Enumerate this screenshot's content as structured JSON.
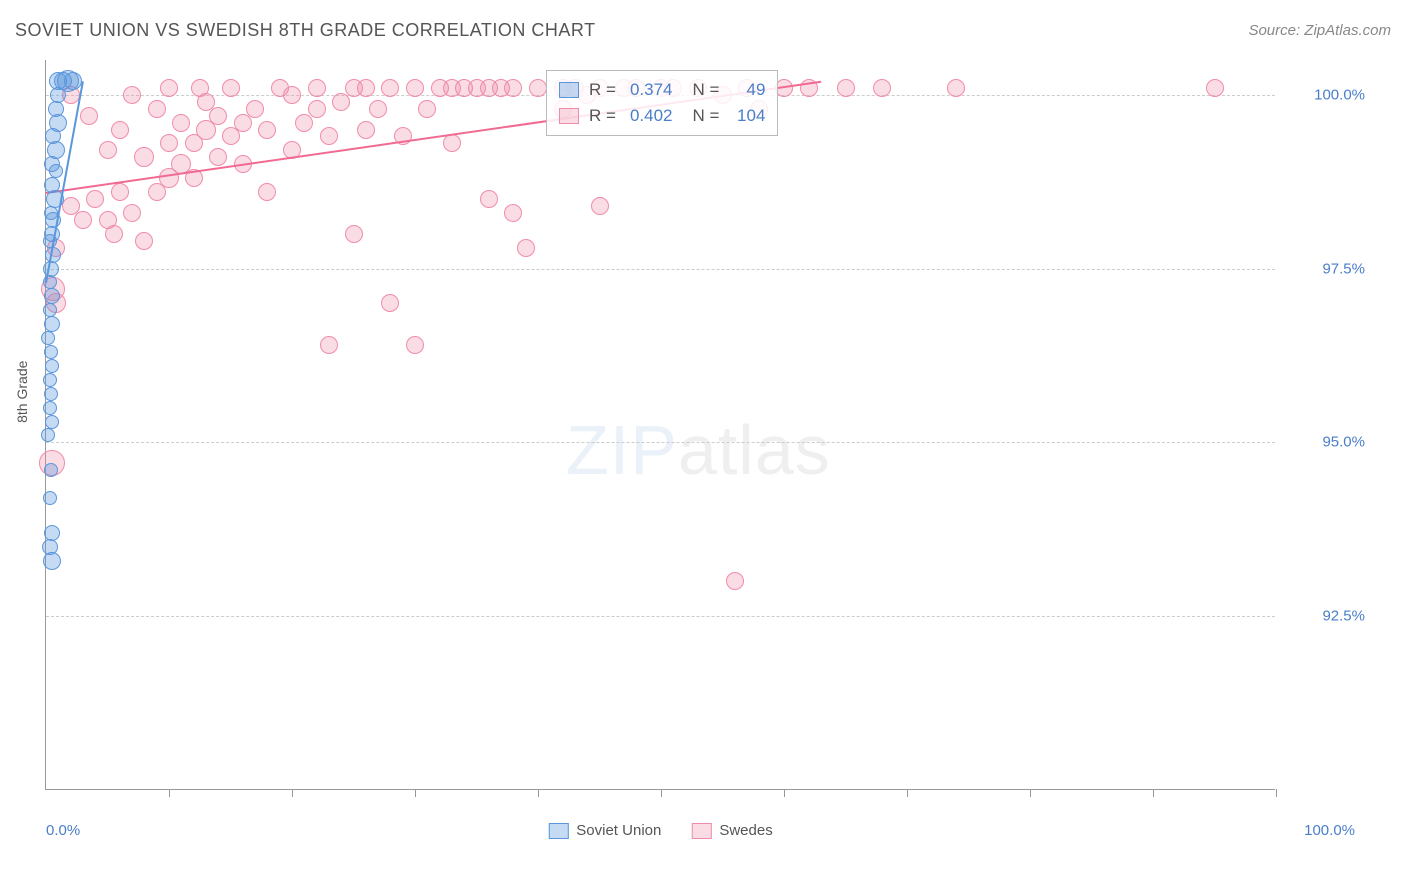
{
  "header": {
    "title": "SOVIET UNION VS SWEDISH 8TH GRADE CORRELATION CHART",
    "source": "Source: ZipAtlas.com"
  },
  "watermark": {
    "bold": "ZIP",
    "light": "atlas"
  },
  "chart": {
    "type": "scatter",
    "ylabel": "8th Grade",
    "xlim": [
      0,
      100
    ],
    "ylim": [
      90,
      100.5
    ],
    "xticks_pct": [
      10,
      20,
      30,
      40,
      50,
      60,
      70,
      80,
      90,
      100
    ],
    "yticks": [
      {
        "value": 100.0,
        "label": "100.0%"
      },
      {
        "value": 97.5,
        "label": "97.5%"
      },
      {
        "value": 95.0,
        "label": "95.0%"
      },
      {
        "value": 92.5,
        "label": "92.5%"
      }
    ],
    "xaxis_label_left": "0.0%",
    "xaxis_label_right": "100.0%",
    "grid_color": "#cccccc",
    "background_color": "#ffffff",
    "label_fontsize": 14,
    "tick_fontsize": 15,
    "tick_color": "#4a7ec9",
    "series": {
      "soviet": {
        "label": "Soviet Union",
        "fill": "rgba(90,150,220,0.35)",
        "stroke": "#5a96dc",
        "R": "0.374",
        "N": "49",
        "trend": {
          "x1": 0,
          "y1": 97.3,
          "x2": 3,
          "y2": 100.2,
          "color": "#5a96dc"
        },
        "points": [
          {
            "x": 1.0,
            "y": 100.2,
            "r": 9
          },
          {
            "x": 1.4,
            "y": 100.2,
            "r": 9
          },
          {
            "x": 1.8,
            "y": 100.2,
            "r": 11
          },
          {
            "x": 2.2,
            "y": 100.2,
            "r": 9
          },
          {
            "x": 1.0,
            "y": 100.0,
            "r": 8
          },
          {
            "x": 0.8,
            "y": 99.8,
            "r": 8
          },
          {
            "x": 1.0,
            "y": 99.6,
            "r": 9
          },
          {
            "x": 0.6,
            "y": 99.4,
            "r": 8
          },
          {
            "x": 0.8,
            "y": 99.2,
            "r": 9
          },
          {
            "x": 0.5,
            "y": 99.0,
            "r": 8
          },
          {
            "x": 0.8,
            "y": 98.9,
            "r": 7
          },
          {
            "x": 0.5,
            "y": 98.7,
            "r": 8
          },
          {
            "x": 0.7,
            "y": 98.5,
            "r": 9
          },
          {
            "x": 0.4,
            "y": 98.3,
            "r": 7
          },
          {
            "x": 0.6,
            "y": 98.2,
            "r": 8
          },
          {
            "x": 0.5,
            "y": 98.0,
            "r": 8
          },
          {
            "x": 0.3,
            "y": 97.9,
            "r": 7
          },
          {
            "x": 0.6,
            "y": 97.7,
            "r": 8
          },
          {
            "x": 0.4,
            "y": 97.5,
            "r": 8
          },
          {
            "x": 0.3,
            "y": 97.3,
            "r": 7
          },
          {
            "x": 0.5,
            "y": 97.1,
            "r": 8
          },
          {
            "x": 0.3,
            "y": 96.9,
            "r": 7
          },
          {
            "x": 0.5,
            "y": 96.7,
            "r": 8
          },
          {
            "x": 0.2,
            "y": 96.5,
            "r": 7
          },
          {
            "x": 0.4,
            "y": 96.3,
            "r": 7
          },
          {
            "x": 0.5,
            "y": 96.1,
            "r": 7
          },
          {
            "x": 0.3,
            "y": 95.9,
            "r": 7
          },
          {
            "x": 0.4,
            "y": 95.7,
            "r": 7
          },
          {
            "x": 0.3,
            "y": 95.5,
            "r": 7
          },
          {
            "x": 0.5,
            "y": 95.3,
            "r": 7
          },
          {
            "x": 0.2,
            "y": 95.1,
            "r": 7
          },
          {
            "x": 0.4,
            "y": 94.6,
            "r": 7
          },
          {
            "x": 0.3,
            "y": 94.2,
            "r": 7
          },
          {
            "x": 0.5,
            "y": 93.7,
            "r": 8
          },
          {
            "x": 0.3,
            "y": 93.5,
            "r": 8
          },
          {
            "x": 0.5,
            "y": 93.3,
            "r": 9
          }
        ]
      },
      "swedes": {
        "label": "Swedes",
        "fill": "rgba(240,140,170,0.3)",
        "stroke": "#f08caa",
        "R": "0.402",
        "N": "104",
        "trend": {
          "x1": 0,
          "y1": 98.6,
          "x2": 63,
          "y2": 100.2,
          "color": "#f06a92"
        },
        "points": [
          {
            "x": 0.8,
            "y": 97.8,
            "r": 9
          },
          {
            "x": 0.6,
            "y": 97.2,
            "r": 12
          },
          {
            "x": 0.8,
            "y": 97.0,
            "r": 10
          },
          {
            "x": 0.5,
            "y": 94.7,
            "r": 13
          },
          {
            "x": 2,
            "y": 98.4,
            "r": 9
          },
          {
            "x": 2,
            "y": 100.0,
            "r": 9
          },
          {
            "x": 3,
            "y": 98.2,
            "r": 9
          },
          {
            "x": 3.5,
            "y": 99.7,
            "r": 9
          },
          {
            "x": 4,
            "y": 98.5,
            "r": 9
          },
          {
            "x": 5,
            "y": 98.2,
            "r": 9
          },
          {
            "x": 5,
            "y": 99.2,
            "r": 9
          },
          {
            "x": 5.5,
            "y": 98.0,
            "r": 9
          },
          {
            "x": 6,
            "y": 98.6,
            "r": 9
          },
          {
            "x": 6,
            "y": 99.5,
            "r": 9
          },
          {
            "x": 7,
            "y": 98.3,
            "r": 9
          },
          {
            "x": 7,
            "y": 100.0,
            "r": 9
          },
          {
            "x": 8,
            "y": 99.1,
            "r": 10
          },
          {
            "x": 8,
            "y": 97.9,
            "r": 9
          },
          {
            "x": 9,
            "y": 98.6,
            "r": 9
          },
          {
            "x": 9,
            "y": 99.8,
            "r": 9
          },
          {
            "x": 10,
            "y": 98.8,
            "r": 10
          },
          {
            "x": 10,
            "y": 99.3,
            "r": 9
          },
          {
            "x": 10,
            "y": 100.1,
            "r": 9
          },
          {
            "x": 11,
            "y": 99.0,
            "r": 10
          },
          {
            "x": 11,
            "y": 99.6,
            "r": 9
          },
          {
            "x": 12,
            "y": 98.8,
            "r": 9
          },
          {
            "x": 12,
            "y": 99.3,
            "r": 9
          },
          {
            "x": 12.5,
            "y": 100.1,
            "r": 9
          },
          {
            "x": 13,
            "y": 99.5,
            "r": 10
          },
          {
            "x": 13,
            "y": 99.9,
            "r": 9
          },
          {
            "x": 14,
            "y": 99.1,
            "r": 9
          },
          {
            "x": 14,
            "y": 99.7,
            "r": 9
          },
          {
            "x": 15,
            "y": 99.4,
            "r": 9
          },
          {
            "x": 15,
            "y": 100.1,
            "r": 9
          },
          {
            "x": 16,
            "y": 99.0,
            "r": 9
          },
          {
            "x": 16,
            "y": 99.6,
            "r": 9
          },
          {
            "x": 17,
            "y": 99.8,
            "r": 9
          },
          {
            "x": 18,
            "y": 98.6,
            "r": 9
          },
          {
            "x": 18,
            "y": 99.5,
            "r": 9
          },
          {
            "x": 19,
            "y": 100.1,
            "r": 9
          },
          {
            "x": 20,
            "y": 99.2,
            "r": 9
          },
          {
            "x": 20,
            "y": 100.0,
            "r": 9
          },
          {
            "x": 21,
            "y": 99.6,
            "r": 9
          },
          {
            "x": 22,
            "y": 99.8,
            "r": 9
          },
          {
            "x": 22,
            "y": 100.1,
            "r": 9
          },
          {
            "x": 23,
            "y": 99.4,
            "r": 9
          },
          {
            "x": 23,
            "y": 96.4,
            "r": 9
          },
          {
            "x": 24,
            "y": 99.9,
            "r": 9
          },
          {
            "x": 25,
            "y": 100.1,
            "r": 9
          },
          {
            "x": 25,
            "y": 98.0,
            "r": 9
          },
          {
            "x": 26,
            "y": 99.5,
            "r": 9
          },
          {
            "x": 26,
            "y": 100.1,
            "r": 9
          },
          {
            "x": 27,
            "y": 99.8,
            "r": 9
          },
          {
            "x": 28,
            "y": 97.0,
            "r": 9
          },
          {
            "x": 28,
            "y": 100.1,
            "r": 9
          },
          {
            "x": 29,
            "y": 99.4,
            "r": 9
          },
          {
            "x": 30,
            "y": 96.4,
            "r": 9
          },
          {
            "x": 30,
            "y": 100.1,
            "r": 9
          },
          {
            "x": 31,
            "y": 99.8,
            "r": 9
          },
          {
            "x": 32,
            "y": 100.1,
            "r": 9
          },
          {
            "x": 33,
            "y": 100.1,
            "r": 9
          },
          {
            "x": 33,
            "y": 99.3,
            "r": 9
          },
          {
            "x": 34,
            "y": 100.1,
            "r": 9
          },
          {
            "x": 35,
            "y": 100.1,
            "r": 9
          },
          {
            "x": 36,
            "y": 98.5,
            "r": 9
          },
          {
            "x": 36,
            "y": 100.1,
            "r": 9
          },
          {
            "x": 37,
            "y": 100.1,
            "r": 9
          },
          {
            "x": 38,
            "y": 98.3,
            "r": 9
          },
          {
            "x": 38,
            "y": 100.1,
            "r": 9
          },
          {
            "x": 39,
            "y": 97.8,
            "r": 9
          },
          {
            "x": 40,
            "y": 100.1,
            "r": 9
          },
          {
            "x": 42,
            "y": 100.1,
            "r": 9
          },
          {
            "x": 42,
            "y": 99.8,
            "r": 9
          },
          {
            "x": 43,
            "y": 100.1,
            "r": 9
          },
          {
            "x": 44,
            "y": 100.0,
            "r": 9
          },
          {
            "x": 45,
            "y": 100.1,
            "r": 9
          },
          {
            "x": 45,
            "y": 98.4,
            "r": 9
          },
          {
            "x": 47,
            "y": 100.1,
            "r": 9
          },
          {
            "x": 48,
            "y": 100.1,
            "r": 9
          },
          {
            "x": 50,
            "y": 100.1,
            "r": 9
          },
          {
            "x": 51,
            "y": 100.1,
            "r": 9
          },
          {
            "x": 53,
            "y": 100.1,
            "r": 9
          },
          {
            "x": 55,
            "y": 100.0,
            "r": 9
          },
          {
            "x": 56,
            "y": 93.0,
            "r": 9
          },
          {
            "x": 57,
            "y": 100.1,
            "r": 9
          },
          {
            "x": 58,
            "y": 99.8,
            "r": 9
          },
          {
            "x": 60,
            "y": 100.1,
            "r": 9
          },
          {
            "x": 62,
            "y": 100.1,
            "r": 9
          },
          {
            "x": 65,
            "y": 100.1,
            "r": 9
          },
          {
            "x": 68,
            "y": 100.1,
            "r": 9
          },
          {
            "x": 74,
            "y": 100.1,
            "r": 9
          },
          {
            "x": 95,
            "y": 100.1,
            "r": 9
          }
        ]
      }
    },
    "stats_legend": {
      "r_label": "R =",
      "n_label": "N ="
    }
  }
}
